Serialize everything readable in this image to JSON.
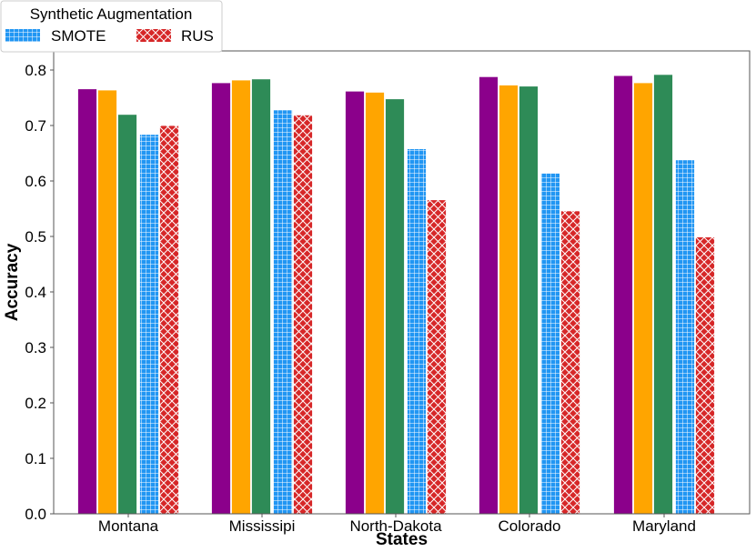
{
  "chart_data": {
    "type": "bar",
    "title": "",
    "xlabel": "States",
    "ylabel": "Accuracy",
    "ylim": [
      0.0,
      0.83
    ],
    "yticks": [
      "0.0",
      "0.1",
      "0.2",
      "0.3",
      "0.4",
      "0.5",
      "0.6",
      "0.7",
      "0.8"
    ],
    "categories": [
      "Montana",
      "Mississipi",
      "North-Dakota",
      "Colorado",
      "Maryland"
    ],
    "grid": false,
    "legend": {
      "title": "Synthetic Augmentation",
      "placement": "top-left, outside above plot",
      "entries": [
        "SMOTE",
        "RUS"
      ]
    },
    "series": [
      {
        "color": "#8b008b",
        "pattern": "solid",
        "values": [
          0.766,
          0.777,
          0.762,
          0.788,
          0.79
        ]
      },
      {
        "color": "#ffa500",
        "pattern": "solid",
        "values": [
          0.764,
          0.782,
          0.76,
          0.773,
          0.777
        ]
      },
      {
        "color": "#2e8b57",
        "pattern": "solid",
        "values": [
          0.72,
          0.784,
          0.748,
          0.771,
          0.792
        ]
      },
      {
        "name": "SMOTE",
        "color": "#2196f3",
        "pattern": "grid",
        "values": [
          0.684,
          0.728,
          0.658,
          0.614,
          0.638
        ]
      },
      {
        "name": "RUS",
        "color": "#d62728",
        "pattern": "cross",
        "values": [
          0.7,
          0.719,
          0.566,
          0.546,
          0.499
        ]
      }
    ]
  }
}
